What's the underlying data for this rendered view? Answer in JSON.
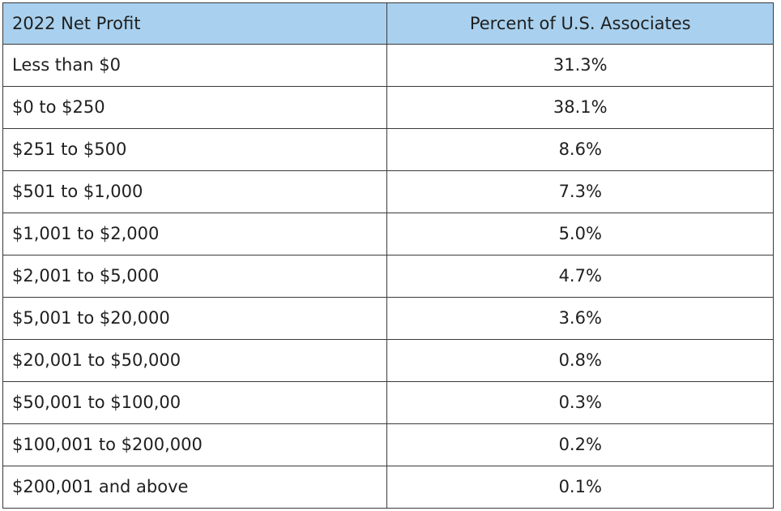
{
  "table": {
    "header_bg": "#a9d1ef",
    "columns": [
      "2022 Net Profit",
      "Percent of U.S. Associates"
    ],
    "rows": [
      [
        "Less than $0",
        "31.3%"
      ],
      [
        "$0 to $250",
        "38.1%"
      ],
      [
        "$251 to $500",
        "8.6%"
      ],
      [
        "$501 to $1,000",
        "7.3%"
      ],
      [
        "$1,001 to $2,000",
        "5.0%"
      ],
      [
        "$2,001 to $5,000",
        "4.7%"
      ],
      [
        "$5,001 to $20,000",
        "3.6%"
      ],
      [
        "$20,001 to $50,000",
        "0.8%"
      ],
      [
        "$50,001 to $100,00",
        "0.3%"
      ],
      [
        "$100,001 to $200,000",
        "0.2%"
      ],
      [
        "$200,001 and above",
        "0.1%"
      ]
    ]
  }
}
